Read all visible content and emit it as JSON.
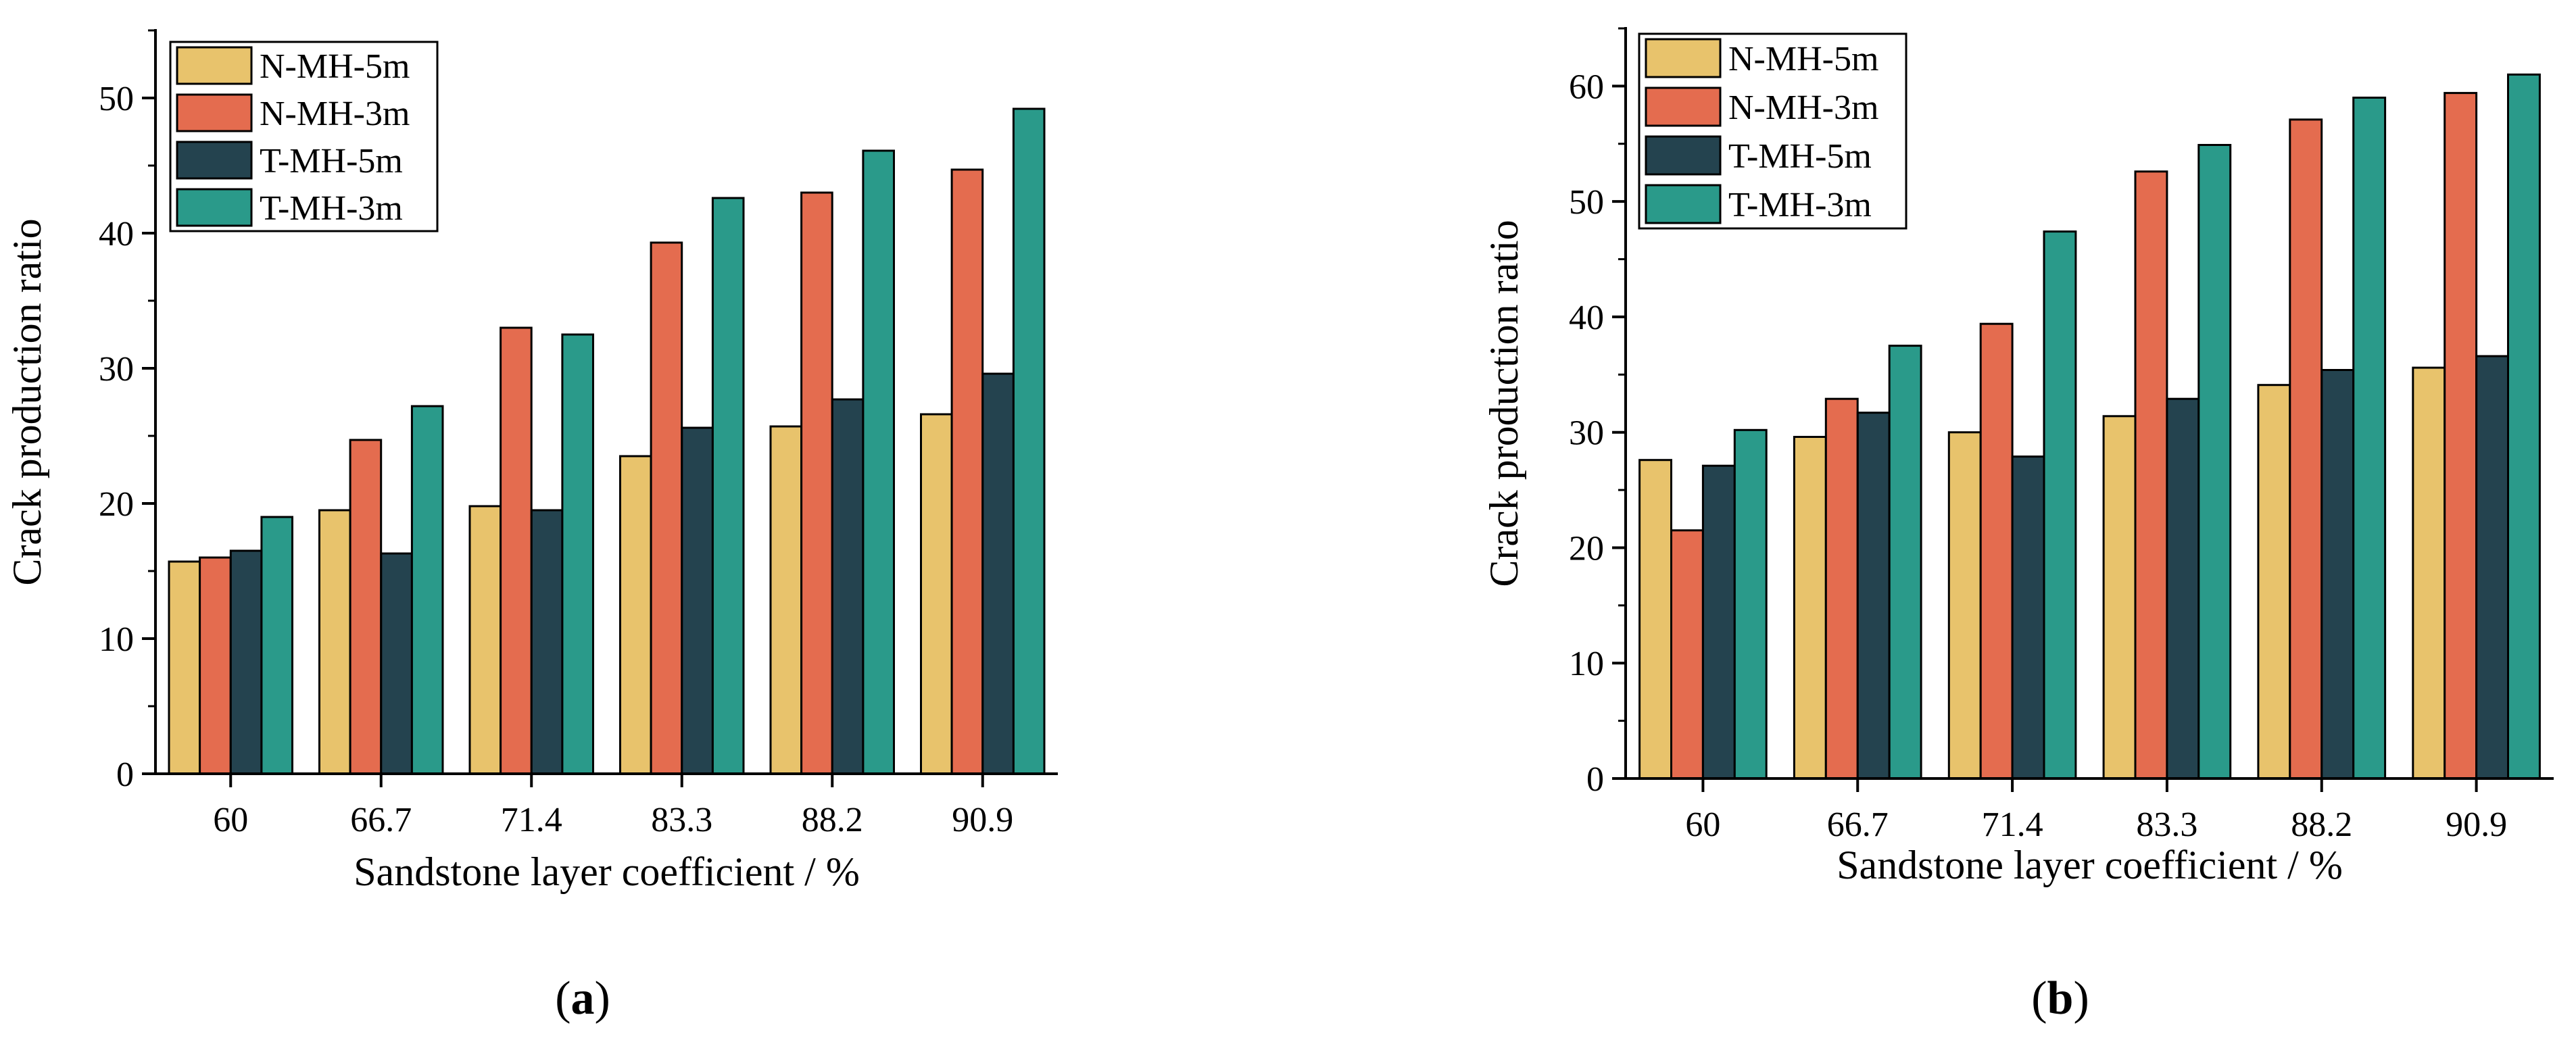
{
  "figure": {
    "panels": [
      "a",
      "b"
    ]
  },
  "colors": {
    "N-MH-5m": "#E8C36C",
    "N-MH-3m": "#E46C4F",
    "T-MH-5m": "#24434F",
    "T-MH-3m": "#2A9A8A"
  },
  "chart_data": [
    {
      "type": "bar",
      "panel_label": "a",
      "title": "",
      "xlabel": "Sandstone layer coefficient / %",
      "ylabel": "Crack production ratio",
      "ylim": [
        0,
        55
      ],
      "yticks": [
        0,
        10,
        20,
        30,
        40,
        50
      ],
      "grid": false,
      "legend_position": "top-left",
      "categories": [
        "60",
        "66.7",
        "71.4",
        "83.3",
        "88.2",
        "90.9"
      ],
      "series": [
        {
          "name": "N-MH-5m",
          "values": [
            15.7,
            19.5,
            19.8,
            23.5,
            25.7,
            26.6
          ]
        },
        {
          "name": "N-MH-3m",
          "values": [
            16.0,
            24.7,
            33.0,
            39.3,
            43.0,
            44.7
          ]
        },
        {
          "name": "T-MH-5m",
          "values": [
            16.5,
            16.3,
            19.5,
            25.6,
            27.7,
            29.6
          ]
        },
        {
          "name": "T-MH-3m",
          "values": [
            19.0,
            27.2,
            32.5,
            42.6,
            46.1,
            49.2
          ]
        }
      ]
    },
    {
      "type": "bar",
      "panel_label": "b",
      "title": "",
      "xlabel": "Sandstone layer coefficient / %",
      "ylabel": "Crack production ratio",
      "ylim": [
        0,
        65
      ],
      "yticks": [
        0,
        10,
        20,
        30,
        40,
        50,
        60
      ],
      "grid": false,
      "legend_position": "top-left",
      "categories": [
        "60",
        "66.7",
        "71.4",
        "83.3",
        "88.2",
        "90.9"
      ],
      "series": [
        {
          "name": "N-MH-5m",
          "values": [
            27.6,
            29.6,
            30.0,
            31.4,
            34.1,
            35.6
          ]
        },
        {
          "name": "N-MH-3m",
          "values": [
            21.5,
            32.9,
            39.4,
            52.6,
            57.1,
            59.4
          ]
        },
        {
          "name": "T-MH-5m",
          "values": [
            27.1,
            31.7,
            27.9,
            32.9,
            35.4,
            36.6
          ]
        },
        {
          "name": "T-MH-3m",
          "values": [
            30.2,
            37.5,
            47.4,
            54.9,
            59.0,
            61.0
          ]
        }
      ]
    }
  ]
}
